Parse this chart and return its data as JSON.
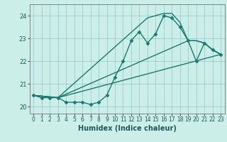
{
  "title": "",
  "xlabel": "Humidex (Indice chaleur)",
  "bg_color": "#cceee8",
  "line_color": "#1a7a6e",
  "grid_color": "#99cccc",
  "xlim": [
    -0.5,
    23.5
  ],
  "ylim": [
    19.7,
    24.5
  ],
  "yticks": [
    20,
    21,
    22,
    23,
    24
  ],
  "xticks": [
    0,
    1,
    2,
    3,
    4,
    5,
    6,
    7,
    8,
    9,
    10,
    11,
    12,
    13,
    14,
    15,
    16,
    17,
    18,
    19,
    20,
    21,
    22,
    23
  ],
  "series": [
    {
      "x": [
        0,
        1,
        2,
        3,
        4,
        5,
        6,
        7,
        8,
        9,
        10,
        11,
        12,
        13,
        14,
        15,
        16,
        17,
        18,
        19,
        20,
        21,
        22,
        23
      ],
      "y": [
        20.5,
        20.4,
        20.4,
        20.4,
        20.2,
        20.2,
        20.2,
        20.1,
        20.2,
        20.5,
        21.3,
        22.0,
        22.9,
        23.3,
        22.8,
        23.2,
        24.0,
        23.9,
        23.5,
        22.9,
        22.0,
        22.8,
        22.5,
        22.3
      ],
      "marker": "D",
      "markersize": 2.5,
      "linewidth": 1.0
    },
    {
      "x": [
        0,
        3,
        14,
        15,
        16,
        17,
        18,
        19,
        20,
        21,
        22,
        23
      ],
      "y": [
        20.5,
        20.4,
        23.9,
        24.0,
        24.1,
        24.1,
        23.7,
        22.9,
        22.9,
        22.8,
        22.5,
        22.3
      ],
      "marker": null,
      "linewidth": 1.0
    },
    {
      "x": [
        0,
        3,
        23
      ],
      "y": [
        20.5,
        20.4,
        22.3
      ],
      "marker": null,
      "linewidth": 1.0
    },
    {
      "x": [
        0,
        3,
        19,
        20,
        21,
        22,
        23
      ],
      "y": [
        20.5,
        20.4,
        22.9,
        22.9,
        22.8,
        22.5,
        22.3
      ],
      "marker": null,
      "linewidth": 1.0
    }
  ]
}
